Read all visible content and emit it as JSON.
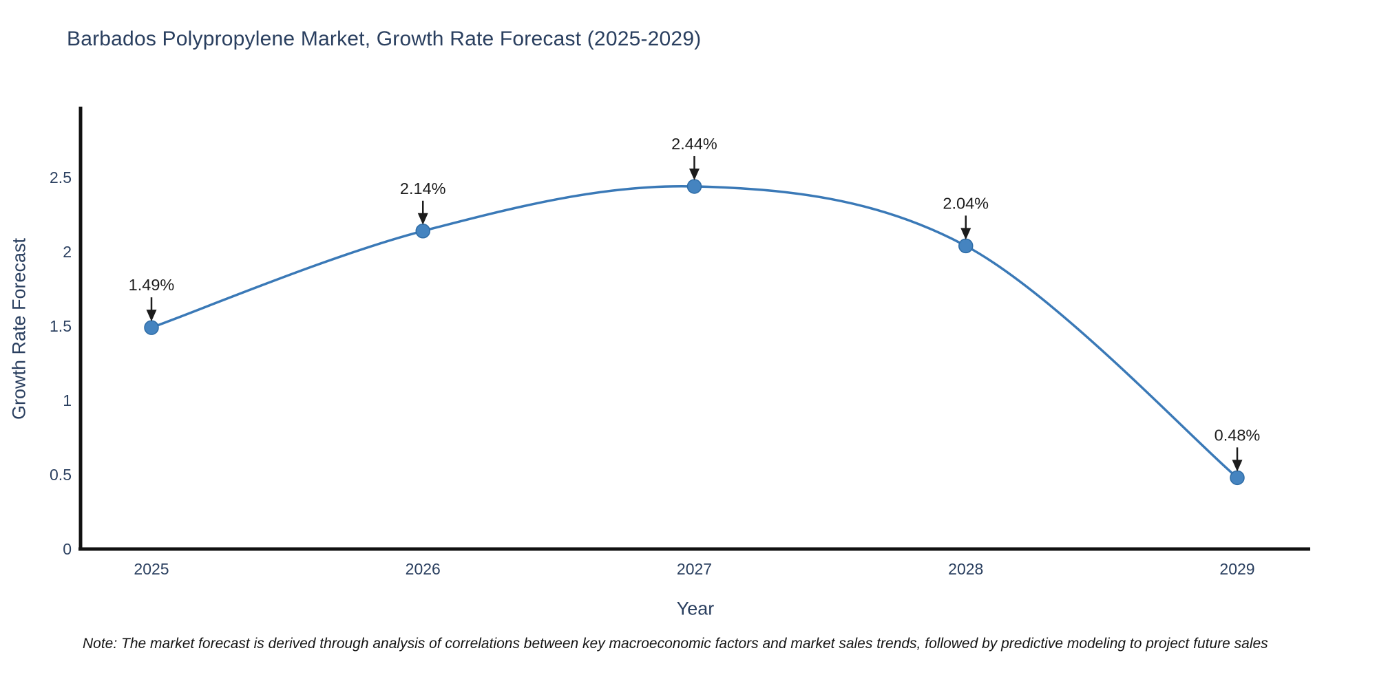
{
  "chart_data": {
    "type": "line",
    "title": "Barbados Polypropylene Market, Growth Rate Forecast (2025-2029)",
    "x": [
      2025,
      2026,
      2027,
      2028,
      2029
    ],
    "series": [
      {
        "name": "Growth Rate Forecast",
        "values": [
          1.49,
          2.14,
          2.44,
          2.04,
          0.48
        ]
      }
    ],
    "point_labels": [
      "1.49%",
      "2.14%",
      "2.44%",
      "2.04%",
      "0.48%"
    ],
    "xlabel": "Year",
    "ylabel": "Growth Rate Forecast",
    "x_tick_labels": [
      "2025",
      "2026",
      "2027",
      "2028",
      "2029"
    ],
    "y_tick_values": [
      0,
      0.5,
      1,
      1.5,
      2,
      2.5
    ],
    "y_tick_labels": [
      "0",
      "0.5",
      "1",
      "1.5",
      "2",
      "2.5"
    ],
    "xlim": [
      2025,
      2029
    ],
    "ylim": [
      0,
      2.98
    ],
    "line_shape": "spline",
    "grid": false,
    "legend": "none",
    "note": "Note: The market forecast is derived through analysis of correlations between key macroeconomic factors and market sales trends, followed by predictive modeling to project future sales",
    "colors": {
      "line": "#3a79b7",
      "marker": "#4584c0",
      "marker_edge": "#2e6ca6",
      "axis": "#111111",
      "tick_text": "#2a3f5f",
      "annotation": "#1c1c1c",
      "background": "#ffffff"
    }
  }
}
